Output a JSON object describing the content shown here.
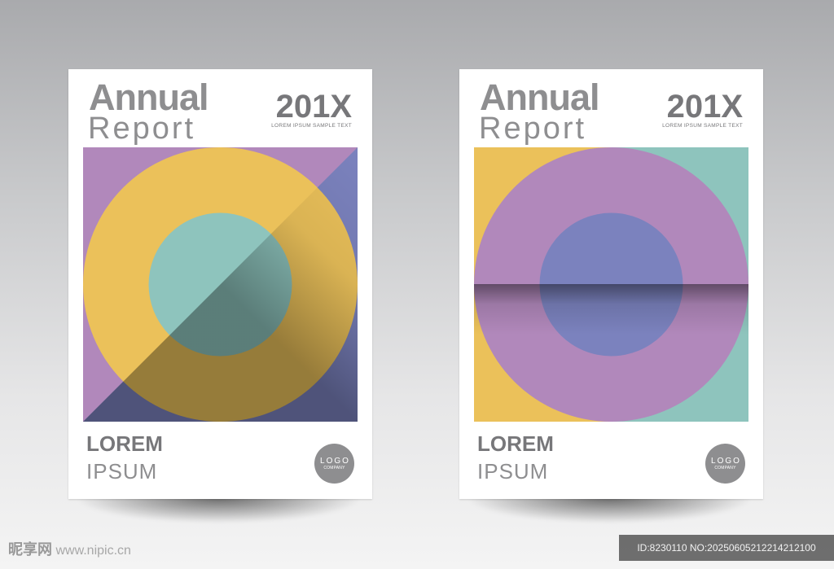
{
  "covers": [
    {
      "title_line1": "Annual",
      "title_line2": "Report",
      "year": "201X",
      "tagline": "LOREM IPSUM SAMPLE TEXT",
      "bottom_line1": "LOREM",
      "bottom_line2": "IPSUM",
      "logo_text": "LOGO",
      "logo_subtext": "COMPANY"
    },
    {
      "title_line1": "Annual",
      "title_line2": "Report",
      "year": "201X",
      "tagline": "LOREM IPSUM SAMPLE TEXT",
      "bottom_line1": "LOREM",
      "bottom_line2": "IPSUM",
      "logo_text": "LOGO",
      "logo_subtext": "COMPANY"
    }
  ],
  "colors": {
    "purple": "#b188bb",
    "yellow": "#ebc15a",
    "teal": "#8ec4bd",
    "blue": "#7b82be",
    "text_gray": "#8e8e90"
  },
  "watermark": {
    "site_logo": "昵享网",
    "site_url": "www.nipic.cn",
    "id_text": "ID:8230110 NO:20250605212214212100"
  }
}
